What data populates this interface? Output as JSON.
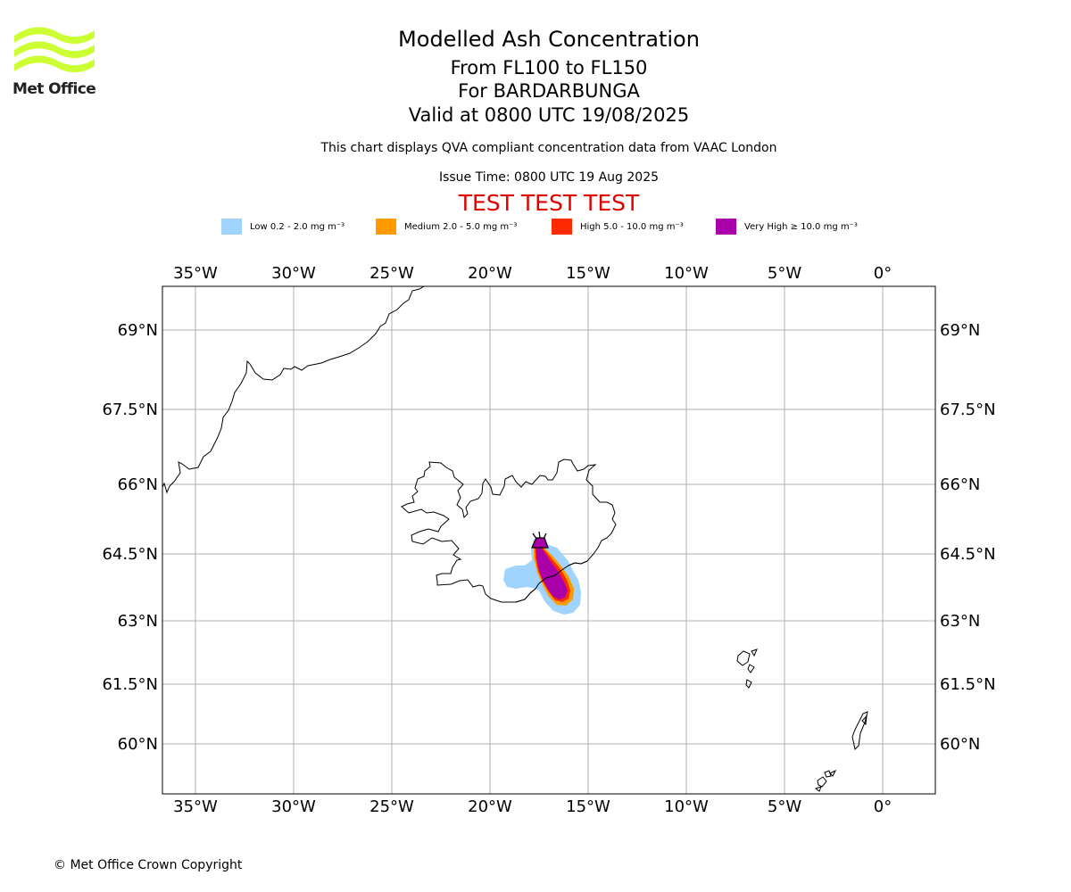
{
  "header": {
    "logo_text": "Met Office",
    "title": "Modelled Ash Concentration",
    "subtitle_levels": "From FL100 to FL150",
    "subtitle_volcano": "For BARDARBUNGA",
    "subtitle_valid": "Valid at 0800 UTC 19/08/2025",
    "description": "This chart displays QVA compliant concentration data from VAAC London",
    "issue_time": "Issue Time: 0800 UTC 19 Aug 2025",
    "test_banner": "TEST TEST TEST"
  },
  "legend": [
    {
      "label": "Low 0.2 - 2.0 mg m⁻³",
      "color": "#a0d4ff"
    },
    {
      "label": "Medium 2.0 - 5.0 mg m⁻³",
      "color": "#ff9a00"
    },
    {
      "label": "High 5.0 - 10.0 mg m⁻³",
      "color": "#ff2a00"
    },
    {
      "label": "Very High ≥ 10.0 mg m⁻³",
      "color": "#aa00aa"
    }
  ],
  "map": {
    "lon_ticks": [
      "35°W",
      "30°W",
      "25°W",
      "20°W",
      "15°W",
      "10°W",
      "5°W",
      "0°"
    ],
    "lat_ticks": [
      "69°N",
      "67.5°N",
      "66°N",
      "64.5°N",
      "63°N",
      "61.5°N",
      "60°N"
    ],
    "extent": {
      "lon_min": -36.7,
      "lon_max": 2.7,
      "lat_min": 59.0,
      "lat_max": 69.85
    },
    "volcano": {
      "name": "BARDARBUNGA",
      "lon": -17.5,
      "lat": 64.63
    },
    "gridline_color": "#b0b0b0"
  },
  "footer": {
    "copyright": "© Met Office Crown Copyright"
  }
}
